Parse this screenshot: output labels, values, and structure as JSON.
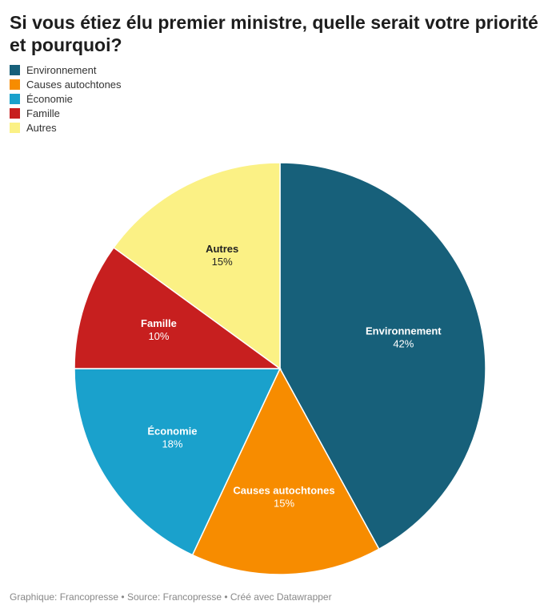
{
  "title": "Si vous étiez élu premier ministre, quelle serait votre priorité et pourquoi?",
  "footer": "Graphique: Francopresse • Source: Francopresse • Créé avec Datawrapper",
  "chart_data": {
    "type": "pie",
    "legend_position": "top-left",
    "slices": [
      {
        "label": "Environnement",
        "value": 42,
        "value_label": "42%",
        "color": "#17607a",
        "text_color": "#ffffff"
      },
      {
        "label": "Causes autochtones",
        "value": 15,
        "value_label": "15%",
        "color": "#f78c00",
        "text_color": "#ffffff"
      },
      {
        "label": "Économie",
        "value": 18,
        "value_label": "18%",
        "color": "#1aa1cc",
        "text_color": "#ffffff"
      },
      {
        "label": "Famille",
        "value": 10,
        "value_label": "10%",
        "color": "#c71f1f",
        "text_color": "#ffffff"
      },
      {
        "label": "Autres",
        "value": 15,
        "value_label": "15%",
        "color": "#fbf185",
        "text_color": "#222222"
      }
    ]
  }
}
